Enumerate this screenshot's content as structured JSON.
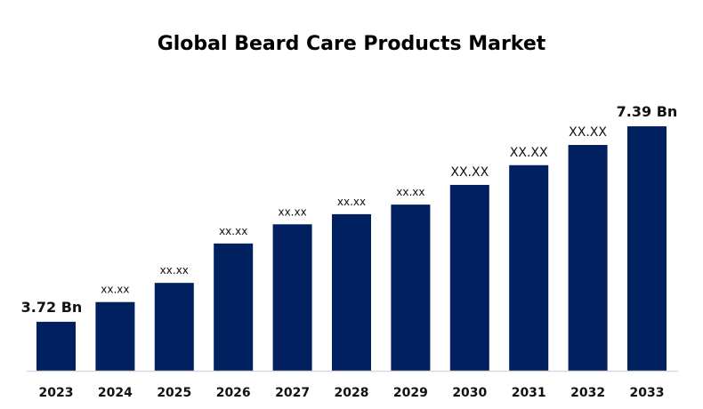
{
  "chart_data": {
    "type": "bar",
    "title": "Global Beard Care Products Market",
    "xlabel": "",
    "ylabel": "",
    "categories": [
      "2023",
      "2024",
      "2025",
      "2026",
      "2027",
      "2028",
      "2029",
      "2030",
      "2031",
      "2032",
      "2033"
    ],
    "values": [
      3.72,
      4.09,
      4.45,
      5.19,
      5.55,
      5.74,
      5.92,
      6.29,
      6.66,
      7.04,
      7.39
    ],
    "data_labels": [
      "3.72 Bn",
      "xx.xx",
      "xx.xx",
      "xx.xx",
      "xx.xx",
      "xx.xx",
      "xx.xx",
      "XX.XX",
      "XX.XX",
      "XX.XX",
      "7.39 Bn"
    ],
    "unit": "Bn",
    "ylim": [
      2.8,
      7.8
    ],
    "grid": false,
    "legend": "none",
    "bar_color": "#002060",
    "axis_color": "#d9d9d9"
  }
}
